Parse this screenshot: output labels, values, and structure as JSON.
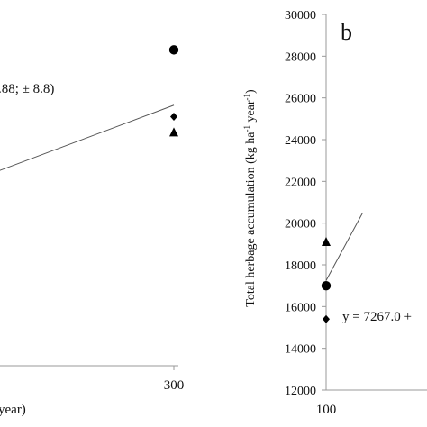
{
  "chart_data": [
    {
      "panel": "a",
      "type": "scatter",
      "x_ticks": [
        300
      ],
      "xlabel_fragment": "year)",
      "annotation": ".88; ± 8.8)",
      "series": [
        {
          "marker": "circle",
          "points": [
            {
              "x": 300,
              "y": 28300
            }
          ]
        },
        {
          "marker": "diamond",
          "points": [
            {
              "x": 300,
              "y": 25100
            }
          ]
        },
        {
          "marker": "triangle",
          "points": [
            {
              "x": 300,
              "y": 24350
            }
          ]
        }
      ],
      "fit_line": {
        "x": [
          0,
          300
        ],
        "y": [
          22350,
          25650
        ]
      }
    },
    {
      "panel": "b",
      "type": "scatter",
      "panel_label": "b",
      "ylabel": "Total herbage accumulation (kg ha-1 year-1)",
      "ylim": [
        12000,
        30000
      ],
      "y_ticks": [
        12000,
        14000,
        16000,
        18000,
        20000,
        22000,
        24000,
        26000,
        28000,
        30000
      ],
      "x_ticks": [
        100
      ],
      "annotation": "y = 7267.0 +",
      "series": [
        {
          "marker": "circle",
          "points": [
            {
              "x": 100,
              "y": 17000
            }
          ]
        },
        {
          "marker": "diamond",
          "points": [
            {
              "x": 100,
              "y": 15400
            }
          ]
        },
        {
          "marker": "triangle",
          "points": [
            {
              "x": 100,
              "y": 19100
            }
          ]
        }
      ],
      "fit_line": {
        "x": [
          100,
          129
        ],
        "y": [
          17250,
          20500
        ]
      }
    }
  ]
}
